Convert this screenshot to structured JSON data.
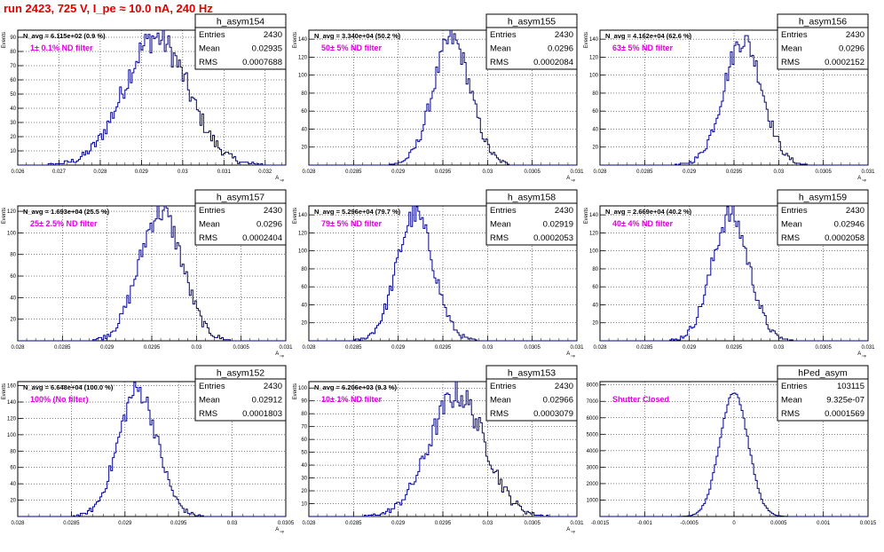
{
  "run_title": "run 2423,   725 V, I_pe ≈ 10.0 nA, 240 Hz",
  "colors": {
    "histogram": "#00008b",
    "annotation": "#e000e0",
    "title": "#e00000"
  },
  "stats_labels": {
    "entries": "Entries",
    "mean": "Mean",
    "rms": "RMS"
  },
  "chart_data": [
    {
      "type": "histogram",
      "name": "h_asym154",
      "navg": "N_avg = 6.115e+02 (0.9 %)",
      "annotation": "1± 0.1% ND filter",
      "entries": "2430",
      "mean": "0.02935",
      "rms": "0.0007688",
      "mu": 0.02935,
      "sigma": 0.00077,
      "peak": 90,
      "n": 2430,
      "xlim": [
        0.026,
        0.0325
      ],
      "ylim": [
        0,
        95
      ],
      "xticks": [
        0.026,
        0.027,
        0.028,
        0.029,
        0.03,
        0.031,
        0.032
      ],
      "xticklabels": [
        "0.026",
        "0.027",
        "0.028",
        "0.029",
        "0.03",
        "0.031",
        "0.032"
      ],
      "yticks": [
        10,
        20,
        30,
        40,
        50,
        60,
        70,
        80,
        90
      ],
      "xlabel": "A_up",
      "ylabel": "Events"
    },
    {
      "type": "histogram",
      "name": "h_asym155",
      "navg": "N_avg = 3.340e+04 (50.2 %)",
      "annotation": "50± 5% ND filter",
      "entries": "2430",
      "mean": "0.0296",
      "rms": "0.0002084",
      "mu": 0.0296,
      "sigma": 0.000208,
      "peak": 140,
      "n": 2430,
      "xlim": [
        0.028,
        0.031
      ],
      "ylim": [
        0,
        150
      ],
      "xticks": [
        0.028,
        0.0285,
        0.029,
        0.0295,
        0.03,
        0.0305,
        0.031
      ],
      "xticklabels": [
        "0.028",
        "0.0285",
        "0.029",
        "0.0295",
        "0.03",
        "0.0305",
        "0.031"
      ],
      "yticks": [
        20,
        40,
        60,
        80,
        100,
        120,
        140
      ],
      "xlabel": "A_up",
      "ylabel": "Events"
    },
    {
      "type": "histogram",
      "name": "h_asym156",
      "navg": "N_avg = 4.162e+04 (62.6 %)",
      "annotation": "63± 5% ND filter",
      "entries": "2430",
      "mean": "0.0296",
      "rms": "0.0002152",
      "mu": 0.0296,
      "sigma": 0.000215,
      "peak": 140,
      "n": 2430,
      "xlim": [
        0.028,
        0.031
      ],
      "ylim": [
        0,
        150
      ],
      "xticks": [
        0.028,
        0.0285,
        0.029,
        0.0295,
        0.03,
        0.0305,
        0.031
      ],
      "xticklabels": [
        "0.028",
        "0.0285",
        "0.029",
        "0.0295",
        "0.03",
        "0.0305",
        "0.031"
      ],
      "yticks": [
        20,
        40,
        60,
        80,
        100,
        120,
        140
      ],
      "xlabel": "A_up",
      "ylabel": "Events"
    },
    {
      "type": "histogram",
      "name": "h_asym157",
      "navg": "N_avg = 1.693e+04 (25.5 %)",
      "annotation": "25± 2.5% ND filter",
      "entries": "2430",
      "mean": "0.0296",
      "rms": "0.0002404",
      "mu": 0.0296,
      "sigma": 0.00024,
      "peak": 120,
      "n": 2430,
      "xlim": [
        0.028,
        0.031
      ],
      "ylim": [
        0,
        125
      ],
      "xticks": [
        0.028,
        0.0285,
        0.029,
        0.0295,
        0.03,
        0.0305,
        0.031
      ],
      "xticklabels": [
        "0.028",
        "0.0285",
        "0.029",
        "0.0295",
        "0.03",
        "0.0305",
        "0.031"
      ],
      "yticks": [
        20,
        40,
        60,
        80,
        100,
        120
      ],
      "xlabel": "A_up",
      "ylabel": "Events"
    },
    {
      "type": "histogram",
      "name": "h_asym158",
      "navg": "N_avg = 5.296e+04 (79.7 %)",
      "annotation": "79± 5% ND filter",
      "entries": "2430",
      "mean": "0.02919",
      "rms": "0.0002053",
      "mu": 0.02919,
      "sigma": 0.000205,
      "peak": 140,
      "n": 2430,
      "xlim": [
        0.028,
        0.031
      ],
      "ylim": [
        0,
        150
      ],
      "xticks": [
        0.028,
        0.0285,
        0.029,
        0.0295,
        0.03,
        0.0305,
        0.031
      ],
      "xticklabels": [
        "0.028",
        "0.0285",
        "0.029",
        "0.0295",
        "0.03",
        "0.0305",
        "0.031"
      ],
      "yticks": [
        20,
        40,
        60,
        80,
        100,
        120,
        140
      ],
      "xlabel": "A_up",
      "ylabel": "Events"
    },
    {
      "type": "histogram",
      "name": "h_asym159",
      "navg": "N_avg = 2.669e+04 (40.2 %)",
      "annotation": "40± 4% ND filter",
      "entries": "2430",
      "mean": "0.02946",
      "rms": "0.0002058",
      "mu": 0.02946,
      "sigma": 0.000206,
      "peak": 140,
      "n": 2430,
      "xlim": [
        0.028,
        0.031
      ],
      "ylim": [
        0,
        150
      ],
      "xticks": [
        0.028,
        0.0285,
        0.029,
        0.0295,
        0.03,
        0.0305,
        0.031
      ],
      "xticklabels": [
        "0.028",
        "0.0285",
        "0.029",
        "0.0295",
        "0.03",
        "0.0305",
        "0.031"
      ],
      "yticks": [
        20,
        40,
        60,
        80,
        100,
        120,
        140
      ],
      "xlabel": "A_up",
      "ylabel": "Events"
    },
    {
      "type": "histogram",
      "name": "h_asym152",
      "navg": "N_avg = 6.648e+04 (100.0 %)",
      "annotation": "100% (No filter)",
      "entries": "2430",
      "mean": "0.02912",
      "rms": "0.0001803",
      "mu": 0.02912,
      "sigma": 0.00018,
      "peak": 155,
      "n": 2430,
      "xlim": [
        0.028,
        0.0305
      ],
      "ylim": [
        0,
        165
      ],
      "xticks": [
        0.028,
        0.0285,
        0.029,
        0.0295,
        0.03,
        0.0305
      ],
      "xticklabels": [
        "0.028",
        "0.0285",
        "0.029",
        "0.0295",
        "0.03",
        "0.0305"
      ],
      "yticks": [
        20,
        40,
        60,
        80,
        100,
        120,
        140,
        160
      ],
      "xlabel": "A_up",
      "ylabel": "Events"
    },
    {
      "type": "histogram",
      "name": "h_asym153",
      "navg": "N_avg = 6.206e+03 (9.3 %)",
      "annotation": "10± 1% ND filter",
      "entries": "2430",
      "mean": "0.02966",
      "rms": "0.0003079",
      "mu": 0.02966,
      "sigma": 0.000308,
      "peak": 95,
      "n": 2430,
      "xlim": [
        0.028,
        0.031
      ],
      "ylim": [
        0,
        105
      ],
      "xticks": [
        0.028,
        0.0285,
        0.029,
        0.0295,
        0.03,
        0.0305,
        0.031
      ],
      "xticklabels": [
        "0.028",
        "0.0285",
        "0.029",
        "0.0295",
        "0.03",
        "0.0305",
        "0.031"
      ],
      "yticks": [
        10,
        20,
        30,
        40,
        50,
        60,
        70,
        80,
        90,
        100
      ],
      "xlabel": "A_up",
      "ylabel": "Events"
    },
    {
      "type": "histogram",
      "name": "hPed_asym",
      "navg": "",
      "annotation": "Shutter Closed",
      "entries": "103115",
      "mean": "9.325e-07",
      "rms": "0.0001569",
      "mu": 0.0,
      "sigma": 0.000157,
      "peak": 7600,
      "n": 103115,
      "xlim": [
        -0.0015,
        0.0015
      ],
      "ylim": [
        0,
        8200
      ],
      "xticks": [
        -0.0015,
        -0.001,
        -0.0005,
        0,
        0.0005,
        0.001,
        0.0015
      ],
      "xticklabels": [
        "-0.0015",
        "-0.001",
        "-0.0005",
        "0",
        "0.0005",
        "0.001",
        "0.0015"
      ],
      "yticks": [
        1000,
        2000,
        3000,
        4000,
        5000,
        6000,
        7000,
        8000
      ],
      "xlabel": "",
      "ylabel": ""
    }
  ]
}
